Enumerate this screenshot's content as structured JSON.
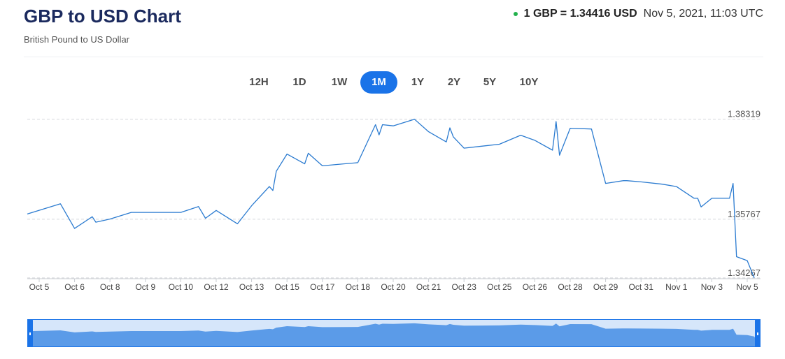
{
  "header": {
    "title": "GBP to USD Chart",
    "subtitle": "British Pound to US Dollar",
    "rate_text": "1 GBP = 1.34416 USD",
    "timestamp": "Nov 5, 2021, 11:03 UTC",
    "live_indicator_color": "#22b14c"
  },
  "range_tabs": [
    {
      "label": "12H",
      "active": false
    },
    {
      "label": "1D",
      "active": false
    },
    {
      "label": "1W",
      "active": false
    },
    {
      "label": "1M",
      "active": true
    },
    {
      "label": "1Y",
      "active": false
    },
    {
      "label": "2Y",
      "active": false
    },
    {
      "label": "5Y",
      "active": false
    },
    {
      "label": "10Y",
      "active": false
    }
  ],
  "colors": {
    "line": "#2b7bd0",
    "active_tab": "#1a73e8",
    "navigator_fill": "#5b9be8",
    "navigator_bg": "#d6e6fa",
    "title": "#1b2a5e"
  },
  "chart_data": {
    "type": "line",
    "grid": "dashed horizontal reference lines",
    "y_reference_labels": [
      "1.38319",
      "1.35767",
      "1.34267"
    ],
    "y_reference_values": [
      1.38319,
      1.35767,
      1.34267
    ],
    "ylim": [
      1.3423,
      1.3851
    ],
    "x_tick_labels": [
      "Oct 5",
      "Oct 6",
      "Oct 8",
      "Oct 9",
      "Oct 10",
      "Oct 12",
      "Oct 13",
      "Oct 15",
      "Oct 17",
      "Oct 18",
      "Oct 20",
      "Oct 21",
      "Oct 23",
      "Oct 25",
      "Oct 26",
      "Oct 28",
      "Oct 29",
      "Oct 31",
      "Nov 1",
      "Nov 3",
      "Nov 5"
    ],
    "series": [
      {
        "x": [
          "Oct 5",
          "Oct 5",
          "Oct 6",
          "Oct 6",
          "Oct 7",
          "Oct 8",
          "Oct 8",
          "Oct 9",
          "Oct 10",
          "Oct 11",
          "Oct 11",
          "Oct 12",
          "Oct 12",
          "Oct 13",
          "Oct 13",
          "Oct 14",
          "Oct 14",
          "Oct 15",
          "Oct 15",
          "Oct 16",
          "Oct 17",
          "Oct 17",
          "Oct 18",
          "Oct 18",
          "Oct 19",
          "Oct 19",
          "Oct 20",
          "Oct 20",
          "Oct 21",
          "Oct 21",
          "Oct 22",
          "Oct 22",
          "Oct 23",
          "Oct 24",
          "Oct 25",
          "Oct 25",
          "Oct 26",
          "Oct 26",
          "Oct 27",
          "Oct 27",
          "Oct 28",
          "Oct 28",
          "Oct 29",
          "Oct 29",
          "Oct 30",
          "Oct 31",
          "Oct 31",
          "Nov 1",
          "Nov 1",
          "Nov 2",
          "Nov 2",
          "Nov 3",
          "Nov 3",
          "Nov 4",
          "Nov 4",
          "Nov 5",
          "Nov 5"
        ],
        "values": [
          1.359,
          1.3616,
          1.3553,
          1.3569,
          1.3583,
          1.3577,
          1.3594,
          1.3594,
          1.3594,
          1.3609,
          1.3579,
          1.3599,
          1.3565,
          1.3611,
          1.365,
          1.366,
          1.3699,
          1.3743,
          1.3745,
          1.3718,
          1.3713,
          1.3718,
          1.3721,
          1.3792,
          1.3818,
          1.3818,
          1.3815,
          1.3832,
          1.38,
          1.381,
          1.3774,
          1.3787,
          1.3758,
          1.3763,
          1.3768,
          1.3791,
          1.3778,
          1.3826,
          1.3753,
          1.374,
          1.3809,
          1.3807,
          1.3668,
          1.3675,
          1.3675,
          1.3672,
          1.3666,
          1.366,
          1.363,
          1.363,
          1.3608,
          1.363,
          1.3668,
          1.363,
          1.3481,
          1.3471,
          1.3427
        ]
      }
    ]
  }
}
